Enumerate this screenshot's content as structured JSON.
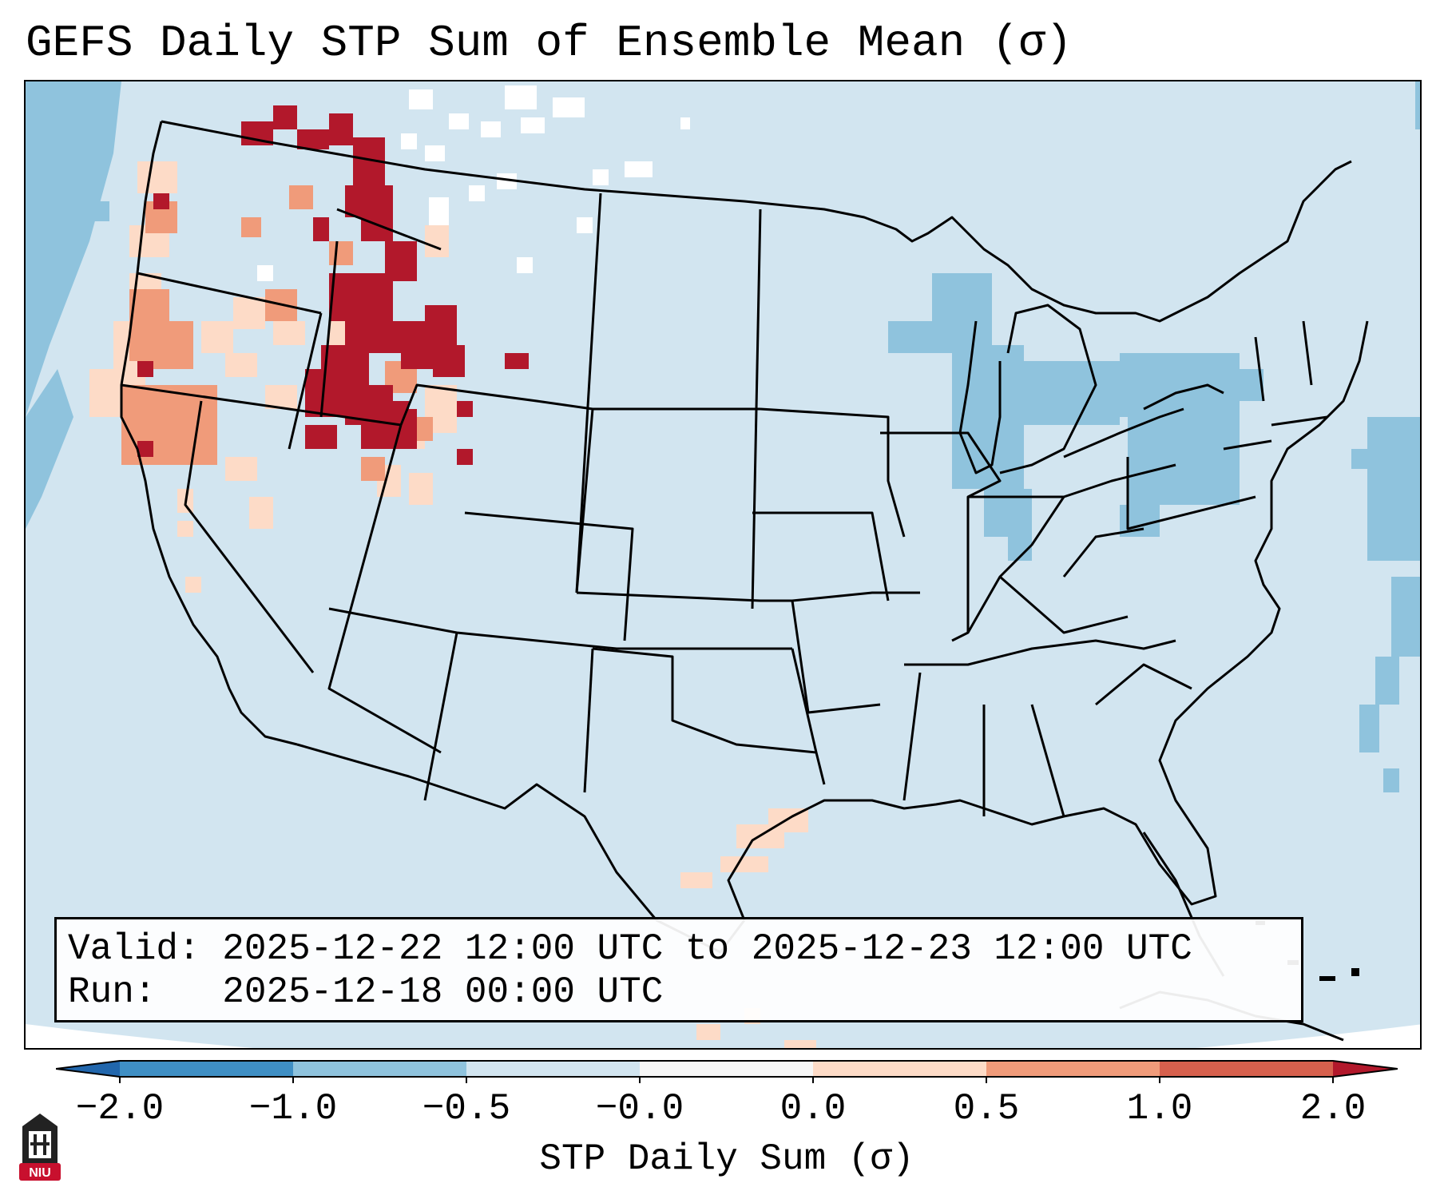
{
  "title": "GEFS Daily STP Sum of Ensemble Mean (σ)",
  "info": {
    "valid_label": "Valid:",
    "valid_value": "2025-12-22 12:00 UTC to 2025-12-23 12:00 UTC",
    "run_label": "Run:",
    "run_value": "2025-12-18 00:00 UTC"
  },
  "colorbar": {
    "label": "STP Daily Sum (σ)",
    "ticks": [
      "−2.0",
      "−1.0",
      "−0.5",
      "−0.0",
      "0.0",
      "0.5",
      "1.0",
      "2.0"
    ],
    "bins": [
      {
        "from": "−2.0",
        "to": "−1.0",
        "color": "#3f8fc4"
      },
      {
        "from": "−1.0",
        "to": "−0.5",
        "color": "#8fc3dd"
      },
      {
        "from": "−0.5",
        "to": "−0.0",
        "color": "#d2e5f0"
      },
      {
        "from": "−0.0",
        "to": "0.0",
        "color": "#f7f7f7"
      },
      {
        "from": "0.0",
        "to": "0.5",
        "color": "#fddbc7"
      },
      {
        "from": "0.5",
        "to": "1.0",
        "color": "#f09b7a"
      },
      {
        "from": "1.0",
        "to": "2.0",
        "color": "#d6604d"
      }
    ],
    "under_color": "#2166ac",
    "over_color": "#b2182b"
  },
  "logo": {
    "text": "NIU",
    "color": "#c8102e"
  },
  "colors": {
    "background_field": "#d2e5f0",
    "outside_projection": "#ffffff",
    "light_blue_cells": "#8fc3dd",
    "white_cells": "#ffffff",
    "light_red_cells": "#fddbc7",
    "mid_red_cells": "#f09b7a",
    "dark_red_cells": "#b2182b"
  }
}
